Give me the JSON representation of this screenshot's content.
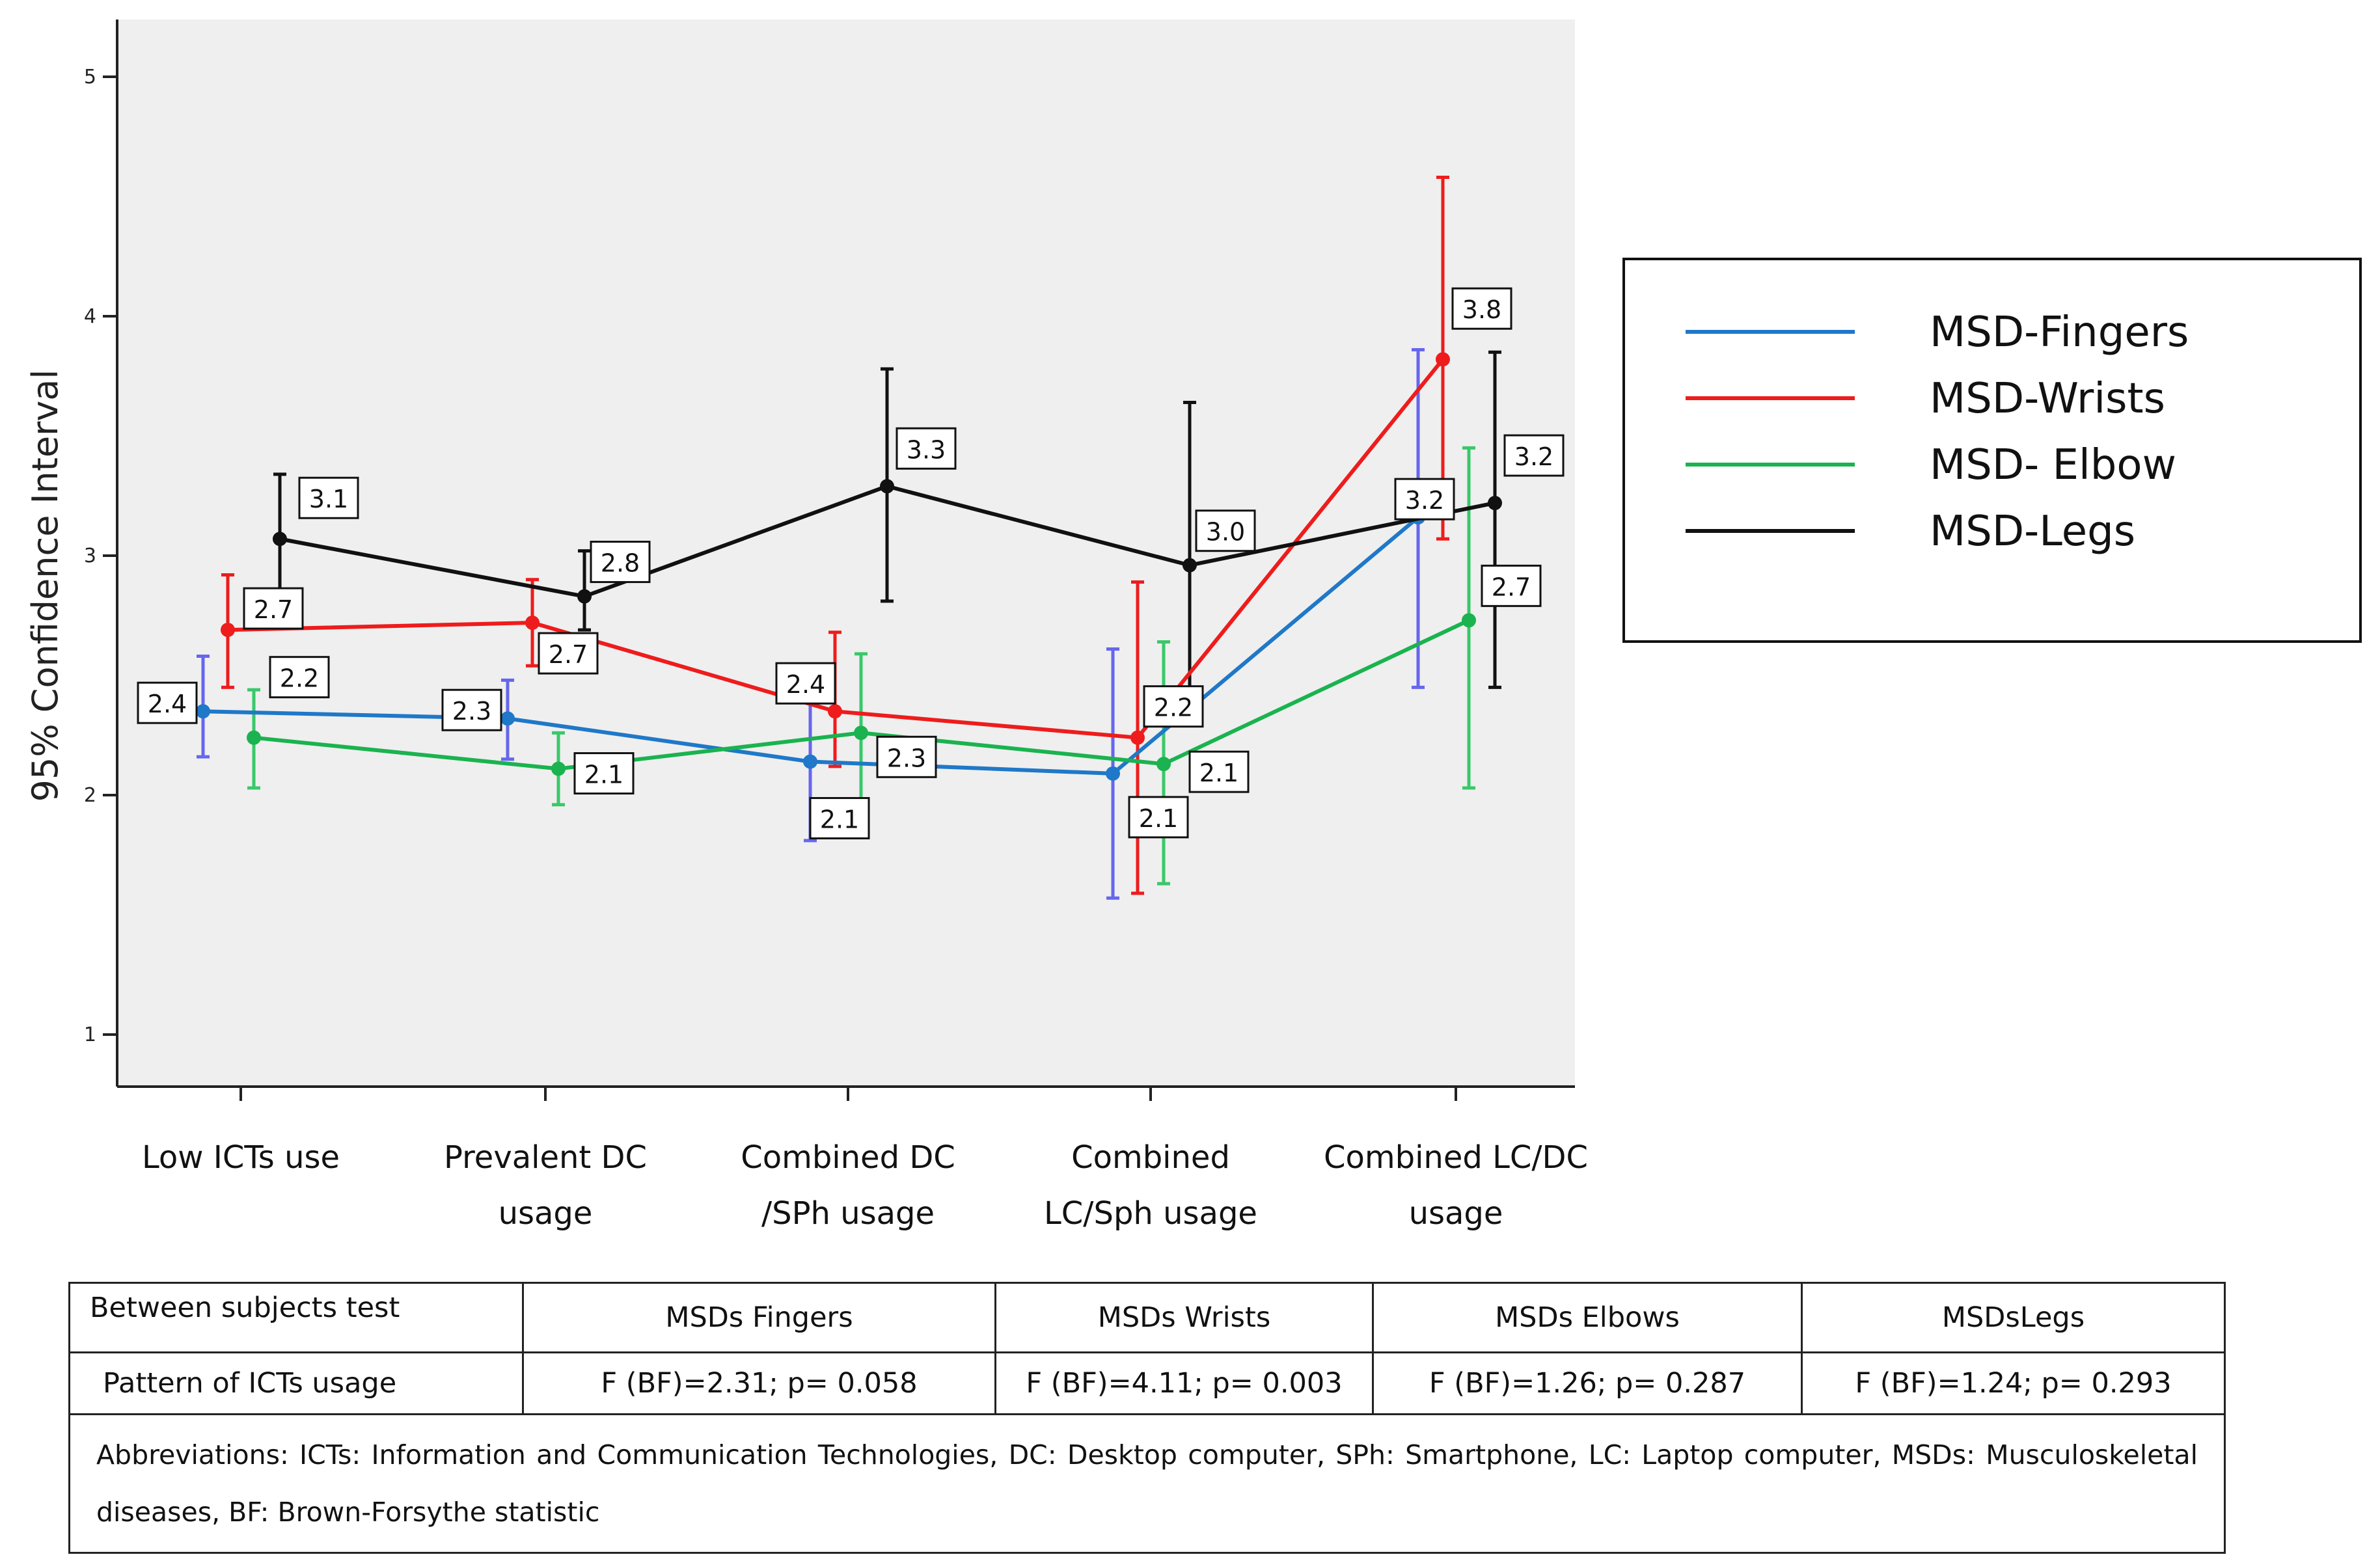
{
  "chart_data": {
    "type": "line",
    "ylabel": "95% Confidence Interval",
    "xlabel": "",
    "ylim": [
      0.8,
      5.25
    ],
    "yticks": [
      "1",
      "2",
      "3",
      "4",
      "5"
    ],
    "categories": [
      [
        "Low ICTs use"
      ],
      [
        "Prevalent DC",
        "usage"
      ],
      [
        "Combined DC",
        "/SPh usage"
      ],
      [
        "Combined",
        "LC/Sph usage"
      ],
      [
        "Combined LC/DC",
        "usage"
      ]
    ],
    "legend_position": "right",
    "series": [
      {
        "name": "MSD-Fingers",
        "color": "#1f78c8",
        "bar_color": "#6666ee",
        "values": [
          2.35,
          2.32,
          2.14,
          2.09,
          3.16
        ],
        "ci_low": [
          2.16,
          2.15,
          1.81,
          1.57,
          2.45
        ],
        "ci_high": [
          2.58,
          2.48,
          2.41,
          2.61,
          3.86
        ],
        "labels": [
          "2.4",
          "2.3",
          "2.1",
          "2.1",
          "3.2"
        ]
      },
      {
        "name": "MSD-Wrists",
        "color": "#ee1c1c",
        "bar_color": "#ee1c1c",
        "values": [
          2.69,
          2.72,
          2.35,
          2.24,
          3.82
        ],
        "ci_low": [
          2.45,
          2.54,
          2.12,
          1.59,
          3.07
        ],
        "ci_high": [
          2.92,
          2.9,
          2.68,
          2.89,
          4.58
        ],
        "labels": [
          "2.7",
          "2.7",
          "2.4",
          "2.2",
          "3.8"
        ]
      },
      {
        "name": "MSD- Elbow",
        "color": "#1ab34f",
        "bar_color": "#3ac86a",
        "values": [
          2.24,
          2.11,
          2.26,
          2.13,
          2.73
        ],
        "ci_low": [
          2.03,
          1.96,
          1.93,
          1.63,
          2.03
        ],
        "ci_high": [
          2.44,
          2.26,
          2.59,
          2.64,
          3.45
        ],
        "labels": [
          "2.2",
          "2.1",
          "2.3",
          "2.1",
          "2.7"
        ]
      },
      {
        "name": "MSD-Legs",
        "color": "#111111",
        "bar_color": "#111111",
        "values": [
          3.07,
          2.83,
          3.29,
          2.96,
          3.22
        ],
        "ci_low": [
          2.82,
          2.69,
          2.81,
          2.29,
          2.45
        ],
        "ci_high": [
          3.34,
          3.02,
          3.78,
          3.64,
          3.85
        ],
        "labels": [
          "3.1",
          "2.8",
          "3.3",
          "3.0",
          "3.2"
        ]
      }
    ]
  },
  "table": {
    "header": [
      "Between  subjects test",
      "MSDs Fingers",
      "MSDs Wrists",
      "MSDs Elbows",
      "MSDsLegs"
    ],
    "row": [
      "Pattern of ICTs usage",
      "F (BF)=2.31;  p= 0.058",
      "F (BF)=4.11; p= 0.003",
      "F (BF)=1.26;  p= 0.287",
      "F (BF)=1.24;  p= 0.293"
    ],
    "abbreviations": "Abbreviations: ICTs: Information and Communication Technologies, DC: Desktop computer, SPh: Smartphone, LC: Laptop computer, MSDs: Musculoskeletal diseases, BF: Brown-Forsythe statistic"
  }
}
